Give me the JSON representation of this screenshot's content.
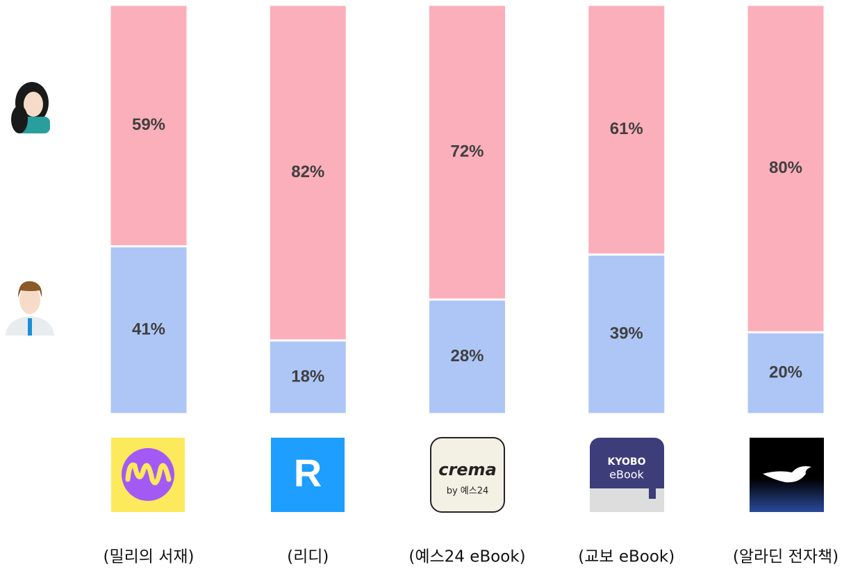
{
  "chart_data": {
    "type": "stacked_bar",
    "categories": [
      "(밀리의 서재)",
      "(리디)",
      "(예스24 eBook)",
      "(교보 eBook)",
      "(알라딘 전자책)"
    ],
    "series": [
      {
        "color": "#aec6f6",
        "values": [
          41,
          18,
          28,
          39,
          20
        ],
        "value_labels": [
          "41%",
          "18%",
          "28%",
          "39%",
          "20%"
        ]
      },
      {
        "color": "#fbafba",
        "values": [
          59,
          82,
          72,
          61,
          80
        ],
        "value_labels": [
          "59%",
          "82%",
          "72%",
          "61%",
          "80%"
        ]
      }
    ],
    "ylim": [
      0,
      100
    ]
  },
  "logo_texts": [
    "R",
    "crema",
    "by 예스24",
    "KYOBO",
    "eBook"
  ]
}
